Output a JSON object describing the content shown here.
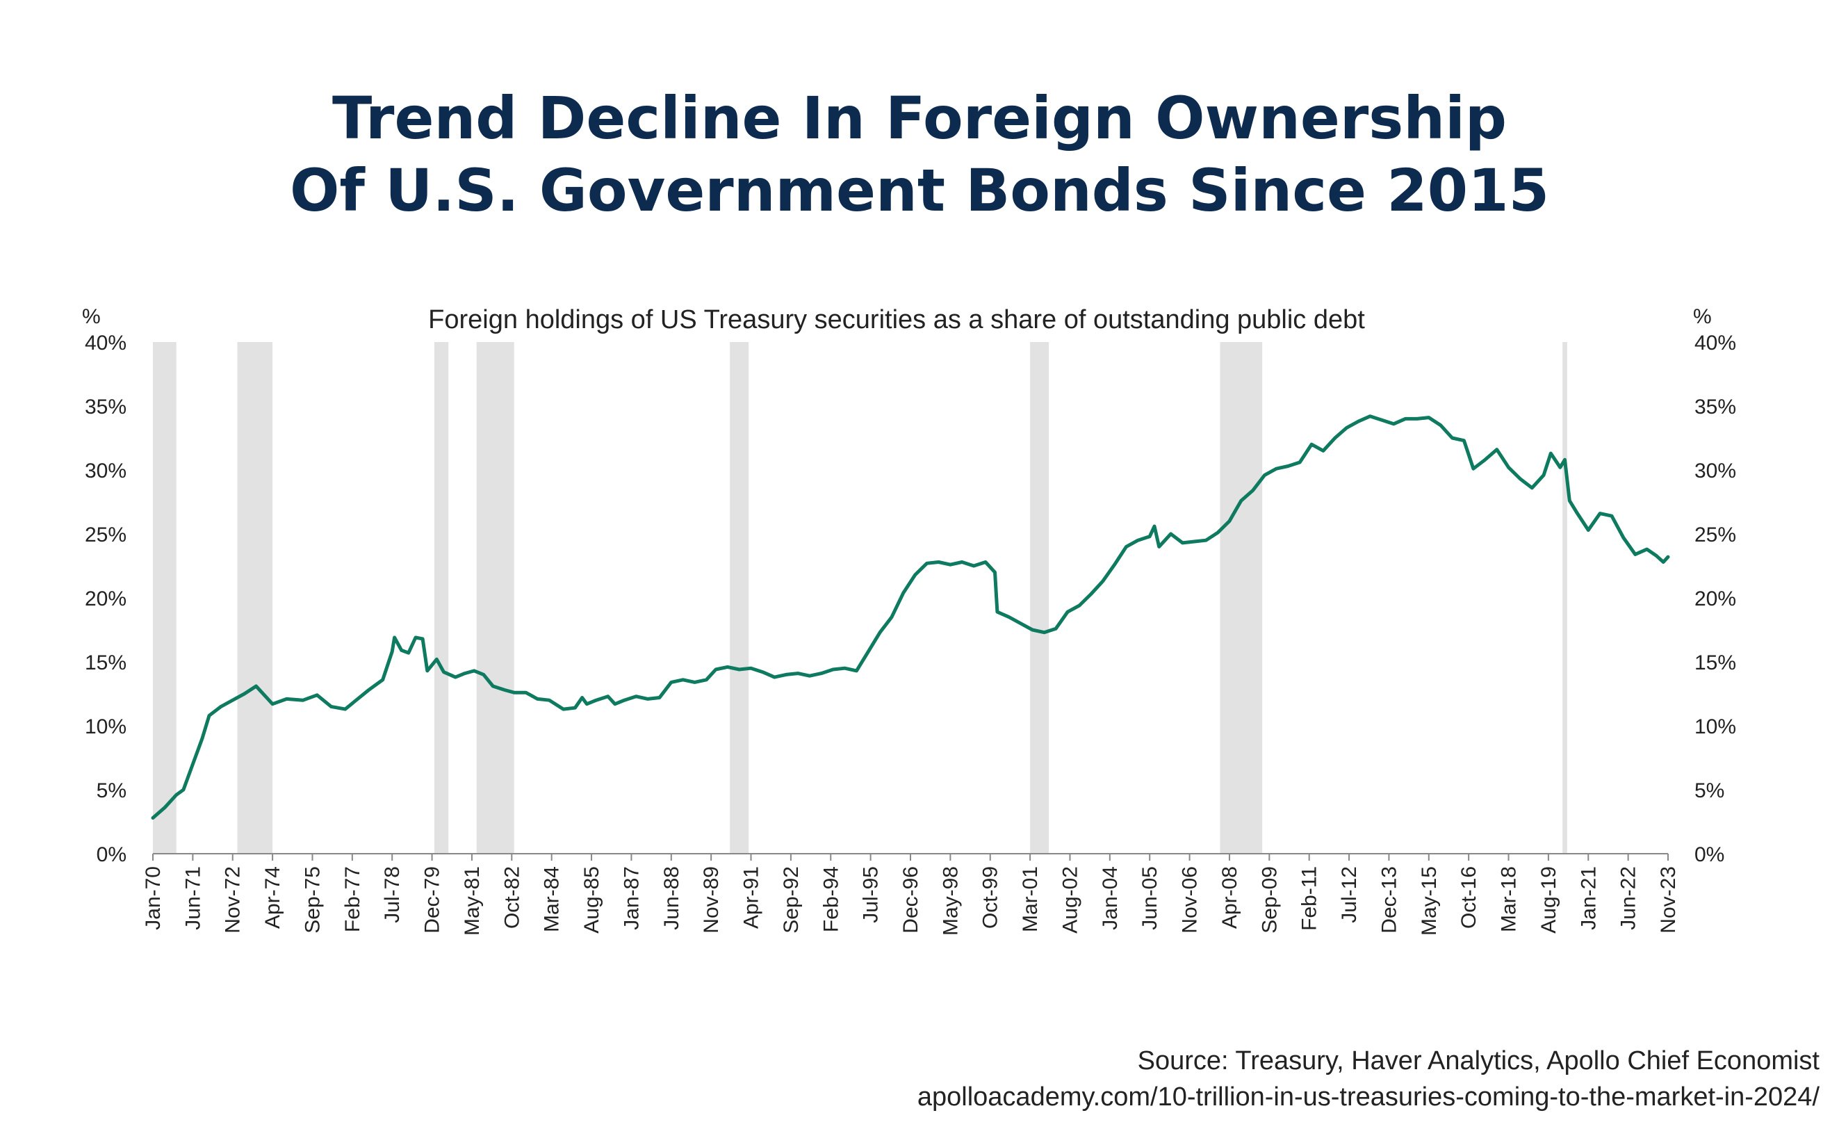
{
  "title": {
    "line1": "Trend Decline In Foreign Ownership",
    "line2": "Of U.S. Government Bonds Since 2015"
  },
  "source": {
    "line1": "Source: Treasury, Haver Analytics, Apollo Chief Economist",
    "line2": "apolloacademy.com/10-trillion-in-us-treasuries-coming-to-the-market-in-2024/"
  },
  "colors": {
    "title": "#0d2b4e",
    "line": "#0e7a5f",
    "recession": "#e2e2e2",
    "axis": "#888888",
    "text": "#222222"
  },
  "chart_data": {
    "type": "line",
    "title": "Foreign holdings of US Treasury securities as a share of outstanding public debt",
    "y_unit_left": "%",
    "y_unit_right": "%",
    "ylim": [
      0,
      40
    ],
    "yticks": [
      "0%",
      "5%",
      "10%",
      "15%",
      "20%",
      "25%",
      "30%",
      "35%",
      "40%"
    ],
    "xlim": [
      "1970-01",
      "2023-11"
    ],
    "xticks": [
      "Jan-70",
      "Jun-71",
      "Nov-72",
      "Apr-74",
      "Sep-75",
      "Feb-77",
      "Jul-78",
      "Dec-79",
      "May-81",
      "Oct-82",
      "Mar-84",
      "Aug-85",
      "Jan-87",
      "Jun-88",
      "Nov-89",
      "Apr-91",
      "Sep-92",
      "Feb-94",
      "Jul-95",
      "Dec-96",
      "May-98",
      "Oct-99",
      "Mar-01",
      "Aug-02",
      "Jan-04",
      "Jun-05",
      "Nov-06",
      "Apr-08",
      "Sep-09",
      "Feb-11",
      "Jul-12",
      "Dec-13",
      "May-15",
      "Oct-16",
      "Mar-18",
      "Aug-19",
      "Jan-21",
      "Jun-22",
      "Nov-23"
    ],
    "grid": false,
    "recessions": [
      [
        "1970-01",
        "1970-11"
      ],
      [
        "1973-01",
        "1974-04"
      ],
      [
        "1980-01",
        "1980-07"
      ],
      [
        "1981-07",
        "1982-11"
      ],
      [
        "1990-07",
        "1991-03"
      ],
      [
        "2001-03",
        "2001-11"
      ],
      [
        "2007-12",
        "2009-06"
      ],
      [
        "2020-02",
        "2020-04"
      ]
    ],
    "series": [
      {
        "values": [
          [
            "1970-01",
            2.8
          ],
          [
            "1970-06",
            3.6
          ],
          [
            "1970-11",
            4.6
          ],
          [
            "1971-02",
            5.0
          ],
          [
            "1971-06",
            7.0
          ],
          [
            "1971-10",
            9.0
          ],
          [
            "1972-01",
            10.8
          ],
          [
            "1972-06",
            11.5
          ],
          [
            "1972-11",
            12.0
          ],
          [
            "1973-04",
            12.5
          ],
          [
            "1973-09",
            13.1
          ],
          [
            "1974-04",
            11.7
          ],
          [
            "1974-10",
            12.1
          ],
          [
            "1975-05",
            12.0
          ],
          [
            "1975-11",
            12.4
          ],
          [
            "1976-05",
            11.5
          ],
          [
            "1976-11",
            11.3
          ],
          [
            "1977-03",
            11.9
          ],
          [
            "1977-09",
            12.8
          ],
          [
            "1978-03",
            13.6
          ],
          [
            "1978-07",
            15.8
          ],
          [
            "1978-08",
            16.9
          ],
          [
            "1978-11",
            15.9
          ],
          [
            "1979-02",
            15.7
          ],
          [
            "1979-05",
            16.9
          ],
          [
            "1979-08",
            16.8
          ],
          [
            "1979-10",
            14.3
          ],
          [
            "1980-02",
            15.2
          ],
          [
            "1980-05",
            14.2
          ],
          [
            "1980-10",
            13.8
          ],
          [
            "1981-02",
            14.1
          ],
          [
            "1981-06",
            14.3
          ],
          [
            "1981-10",
            14.0
          ],
          [
            "1982-02",
            13.1
          ],
          [
            "1982-07",
            12.8
          ],
          [
            "1982-11",
            12.6
          ],
          [
            "1983-04",
            12.6
          ],
          [
            "1983-09",
            12.1
          ],
          [
            "1984-02",
            12.0
          ],
          [
            "1984-08",
            11.3
          ],
          [
            "1985-01",
            11.4
          ],
          [
            "1985-04",
            12.2
          ],
          [
            "1985-06",
            11.7
          ],
          [
            "1985-10",
            12.0
          ],
          [
            "1986-03",
            12.3
          ],
          [
            "1986-06",
            11.7
          ],
          [
            "1986-10",
            12.0
          ],
          [
            "1987-03",
            12.3
          ],
          [
            "1987-08",
            12.1
          ],
          [
            "1988-01",
            12.2
          ],
          [
            "1988-06",
            13.4
          ],
          [
            "1988-11",
            13.6
          ],
          [
            "1989-04",
            13.4
          ],
          [
            "1989-09",
            13.6
          ],
          [
            "1990-01",
            14.4
          ],
          [
            "1990-06",
            14.6
          ],
          [
            "1990-11",
            14.4
          ],
          [
            "1991-04",
            14.5
          ],
          [
            "1991-09",
            14.2
          ],
          [
            "1992-02",
            13.8
          ],
          [
            "1992-07",
            14.0
          ],
          [
            "1992-12",
            14.1
          ],
          [
            "1993-05",
            13.9
          ],
          [
            "1993-10",
            14.1
          ],
          [
            "1994-03",
            14.4
          ],
          [
            "1994-08",
            14.5
          ],
          [
            "1995-01",
            14.3
          ],
          [
            "1995-06",
            15.8
          ],
          [
            "1995-11",
            17.3
          ],
          [
            "1996-04",
            18.5
          ],
          [
            "1996-09",
            20.4
          ],
          [
            "1997-02",
            21.8
          ],
          [
            "1997-07",
            22.7
          ],
          [
            "1997-12",
            22.8
          ],
          [
            "1998-05",
            22.6
          ],
          [
            "1998-10",
            22.8
          ],
          [
            "1999-03",
            22.5
          ],
          [
            "1999-08",
            22.8
          ],
          [
            "1999-12",
            22.0
          ],
          [
            "2000-01",
            18.9
          ],
          [
            "2000-06",
            18.5
          ],
          [
            "2000-11",
            18.0
          ],
          [
            "2001-04",
            17.5
          ],
          [
            "2001-09",
            17.3
          ],
          [
            "2002-02",
            17.6
          ],
          [
            "2002-07",
            18.9
          ],
          [
            "2002-12",
            19.4
          ],
          [
            "2003-05",
            20.3
          ],
          [
            "2003-10",
            21.3
          ],
          [
            "2004-03",
            22.6
          ],
          [
            "2004-08",
            24.0
          ],
          [
            "2005-01",
            24.5
          ],
          [
            "2005-06",
            24.8
          ],
          [
            "2005-08",
            25.6
          ],
          [
            "2005-10",
            24.0
          ],
          [
            "2006-03",
            25.0
          ],
          [
            "2006-08",
            24.3
          ],
          [
            "2007-01",
            24.4
          ],
          [
            "2007-06",
            24.5
          ],
          [
            "2007-11",
            25.1
          ],
          [
            "2008-04",
            26.0
          ],
          [
            "2008-09",
            27.6
          ],
          [
            "2009-02",
            28.4
          ],
          [
            "2009-07",
            29.6
          ],
          [
            "2009-12",
            30.1
          ],
          [
            "2010-05",
            30.3
          ],
          [
            "2010-10",
            30.6
          ],
          [
            "2011-03",
            32.0
          ],
          [
            "2011-08",
            31.5
          ],
          [
            "2012-01",
            32.5
          ],
          [
            "2012-06",
            33.3
          ],
          [
            "2012-11",
            33.8
          ],
          [
            "2013-04",
            34.2
          ],
          [
            "2013-09",
            33.9
          ],
          [
            "2014-02",
            33.6
          ],
          [
            "2014-07",
            34.0
          ],
          [
            "2014-12",
            34.0
          ],
          [
            "2015-05",
            34.1
          ],
          [
            "2015-10",
            33.5
          ],
          [
            "2016-03",
            32.5
          ],
          [
            "2016-08",
            32.3
          ],
          [
            "2016-12",
            30.1
          ],
          [
            "2017-05",
            30.8
          ],
          [
            "2017-10",
            31.6
          ],
          [
            "2018-03",
            30.2
          ],
          [
            "2018-08",
            29.3
          ],
          [
            "2019-01",
            28.6
          ],
          [
            "2019-06",
            29.6
          ],
          [
            "2019-09",
            31.3
          ],
          [
            "2020-01",
            30.2
          ],
          [
            "2020-03",
            30.8
          ],
          [
            "2020-05",
            27.6
          ],
          [
            "2020-08",
            26.7
          ],
          [
            "2021-01",
            25.3
          ],
          [
            "2021-06",
            26.6
          ],
          [
            "2021-11",
            26.4
          ],
          [
            "2022-04",
            24.7
          ],
          [
            "2022-09",
            23.4
          ],
          [
            "2023-02",
            23.8
          ],
          [
            "2023-06",
            23.3
          ],
          [
            "2023-09",
            22.8
          ],
          [
            "2023-11",
            23.2
          ]
        ]
      }
    ]
  }
}
